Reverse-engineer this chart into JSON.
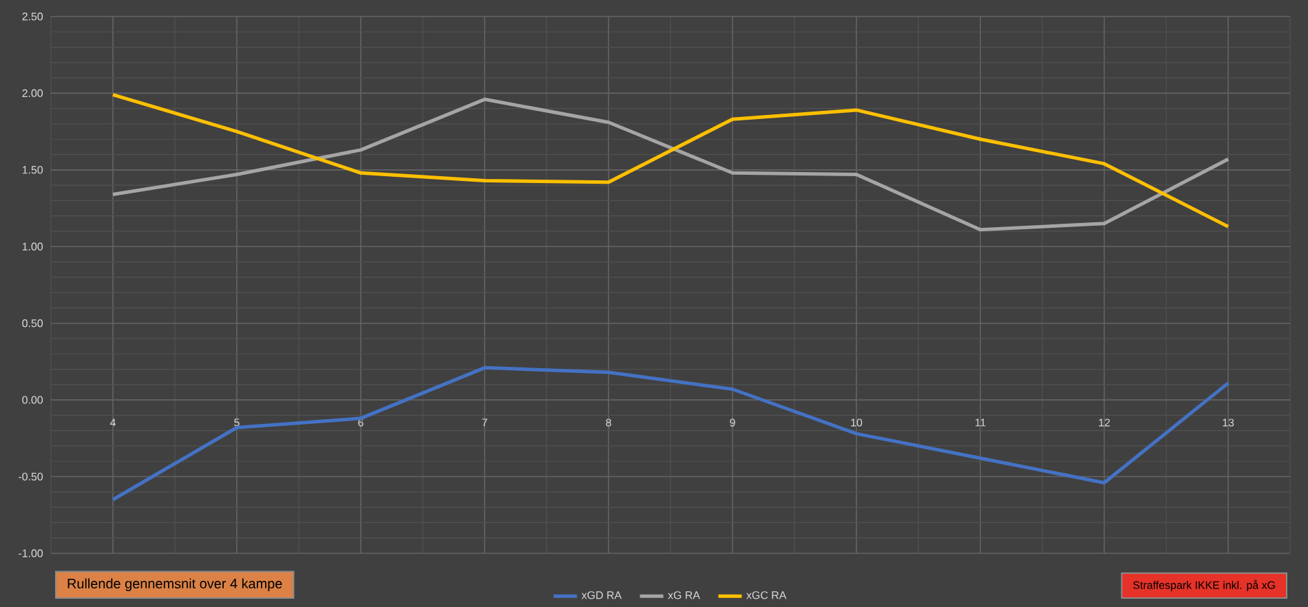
{
  "chart_data": {
    "type": "line",
    "categories": [
      "4",
      "5",
      "6",
      "7",
      "8",
      "9",
      "10",
      "11",
      "12",
      "13"
    ],
    "series": [
      {
        "name": "xGD RA",
        "color": "#4472c4",
        "values": [
          -0.65,
          -0.18,
          -0.12,
          0.21,
          0.18,
          0.07,
          -0.22,
          -0.38,
          -0.54,
          0.11
        ]
      },
      {
        "name": "xG RA",
        "color": "#a5a5a5",
        "values": [
          1.34,
          1.47,
          1.63,
          1.96,
          1.81,
          1.48,
          1.47,
          1.11,
          1.15,
          1.57
        ]
      },
      {
        "name": "xGC RA",
        "color": "#ffc000",
        "values": [
          1.99,
          1.75,
          1.48,
          1.43,
          1.42,
          1.83,
          1.89,
          1.7,
          1.54,
          1.13
        ]
      }
    ],
    "ylim": [
      -1.0,
      2.5
    ],
    "yticks": [
      {
        "value": -1.0,
        "label": "-1.00"
      },
      {
        "value": -0.5,
        "label": "-0.50"
      },
      {
        "value": 0.0,
        "label": "0.00"
      },
      {
        "value": 0.5,
        "label": "0.50"
      },
      {
        "value": 1.0,
        "label": "1.00"
      },
      {
        "value": 1.5,
        "label": "1.50"
      },
      {
        "value": 2.0,
        "label": "2.00"
      },
      {
        "value": 2.5,
        "label": "2.50"
      }
    ],
    "grid": true,
    "legend": "bottom",
    "marker": "none",
    "line_style": "solid",
    "annotations": [
      "Rullende gennemsnit over 4 kampe",
      "Straffespark IKKE inkl. på xG"
    ]
  }
}
